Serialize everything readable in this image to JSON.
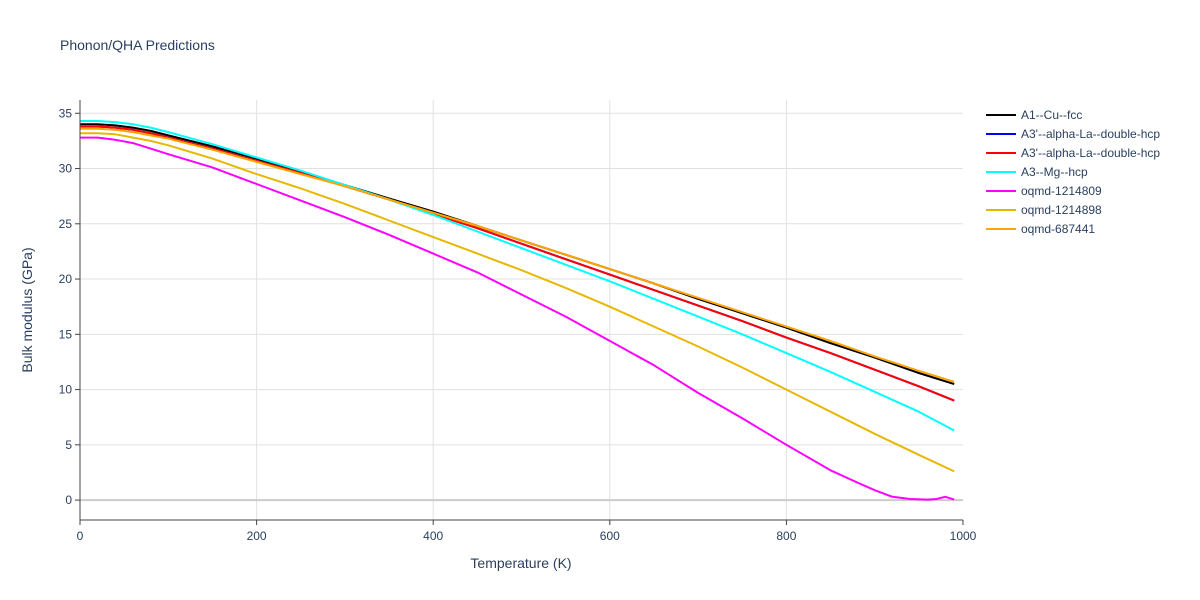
{
  "chart_data": {
    "type": "line",
    "title": "Phonon/QHA Predictions",
    "xlabel": "Temperature (K)",
    "ylabel": "Bulk modulus (GPa)",
    "xlim": [
      0,
      1000
    ],
    "ylim": [
      -1.8,
      36.2
    ],
    "xticks": [
      0,
      200,
      400,
      600,
      800,
      1000
    ],
    "yticks": [
      0,
      5,
      10,
      15,
      20,
      25,
      30,
      35
    ],
    "grid": true,
    "legend_position": "top-right",
    "series": [
      {
        "name": "A1--Cu--fcc",
        "color": "#000000",
        "x": [
          0,
          20,
          40,
          60,
          80,
          100,
          150,
          200,
          250,
          300,
          350,
          400,
          450,
          500,
          550,
          600,
          650,
          700,
          750,
          800,
          850,
          900,
          950,
          990
        ],
        "y": [
          34.0,
          34.0,
          33.9,
          33.7,
          33.4,
          33.0,
          32.0,
          30.9,
          29.7,
          28.5,
          27.3,
          26.1,
          24.8,
          23.5,
          22.2,
          20.9,
          19.6,
          18.2,
          16.9,
          15.6,
          14.2,
          12.9,
          11.5,
          10.5
        ]
      },
      {
        "name": "A3'--alpha-La--double-hcp",
        "color": "#0000ff",
        "x": [
          0,
          20,
          40,
          60,
          80,
          100,
          150,
          200,
          250,
          300,
          350,
          400,
          450,
          500,
          550,
          600,
          650,
          700,
          750,
          800,
          850,
          900,
          950,
          990
        ],
        "y": [
          33.8,
          33.8,
          33.7,
          33.5,
          33.2,
          32.8,
          31.8,
          30.7,
          29.6,
          28.4,
          27.2,
          25.9,
          24.6,
          23.2,
          21.8,
          20.4,
          19.0,
          17.6,
          16.2,
          14.7,
          13.3,
          11.8,
          10.3,
          9.0
        ]
      },
      {
        "name": "A3'--alpha-La--double-hcp",
        "color": "#ff0000",
        "x": [
          0,
          20,
          40,
          60,
          80,
          100,
          150,
          200,
          250,
          300,
          350,
          400,
          450,
          500,
          550,
          600,
          650,
          700,
          750,
          800,
          850,
          900,
          950,
          990
        ],
        "y": [
          33.8,
          33.8,
          33.7,
          33.5,
          33.2,
          32.8,
          31.8,
          30.7,
          29.6,
          28.4,
          27.2,
          25.9,
          24.6,
          23.2,
          21.8,
          20.4,
          19.0,
          17.6,
          16.2,
          14.7,
          13.3,
          11.8,
          10.3,
          9.0
        ]
      },
      {
        "name": "A3--Mg--hcp",
        "color": "#00ffff",
        "x": [
          0,
          20,
          40,
          60,
          80,
          100,
          150,
          200,
          250,
          300,
          350,
          400,
          450,
          500,
          550,
          600,
          650,
          700,
          750,
          800,
          850,
          900,
          950,
          990
        ],
        "y": [
          34.3,
          34.3,
          34.2,
          34.0,
          33.7,
          33.3,
          32.2,
          31.0,
          29.8,
          28.5,
          27.2,
          25.8,
          24.3,
          22.8,
          21.3,
          19.8,
          18.2,
          16.6,
          15.0,
          13.3,
          11.6,
          9.8,
          8.0,
          6.3
        ]
      },
      {
        "name": "oqmd-1214809",
        "color": "#ff00ff",
        "x": [
          0,
          20,
          40,
          60,
          80,
          100,
          150,
          200,
          250,
          300,
          350,
          400,
          450,
          500,
          550,
          600,
          650,
          700,
          750,
          800,
          850,
          880,
          900,
          920,
          940,
          960,
          970,
          980,
          990
        ],
        "y": [
          32.8,
          32.8,
          32.6,
          32.3,
          31.8,
          31.3,
          30.1,
          28.6,
          27.1,
          25.6,
          24.0,
          22.3,
          20.6,
          18.6,
          16.6,
          14.4,
          12.2,
          9.7,
          7.4,
          5.0,
          2.7,
          1.6,
          0.9,
          0.3,
          0.1,
          0.05,
          0.1,
          0.3,
          0.05
        ]
      },
      {
        "name": "oqmd-1214898",
        "color": "#e6b800",
        "x": [
          0,
          20,
          40,
          60,
          80,
          100,
          150,
          200,
          250,
          300,
          350,
          400,
          450,
          500,
          550,
          600,
          650,
          700,
          750,
          800,
          850,
          900,
          950,
          990
        ],
        "y": [
          33.2,
          33.2,
          33.1,
          32.8,
          32.5,
          32.1,
          30.9,
          29.5,
          28.2,
          26.8,
          25.3,
          23.8,
          22.3,
          20.8,
          19.2,
          17.5,
          15.7,
          13.9,
          12.0,
          10.0,
          8.0,
          6.0,
          4.1,
          2.6
        ]
      },
      {
        "name": "oqmd-687441",
        "color": "#ffa500",
        "x": [
          0,
          20,
          40,
          60,
          80,
          100,
          150,
          200,
          250,
          300,
          350,
          400,
          450,
          500,
          550,
          600,
          650,
          700,
          750,
          800,
          850,
          900,
          950,
          990
        ],
        "y": [
          33.6,
          33.6,
          33.5,
          33.3,
          33.0,
          32.7,
          31.7,
          30.6,
          29.5,
          28.4,
          27.2,
          26.0,
          24.8,
          23.5,
          22.2,
          20.9,
          19.6,
          18.3,
          17.0,
          15.7,
          14.4,
          13.0,
          11.7,
          10.7
        ]
      }
    ]
  }
}
